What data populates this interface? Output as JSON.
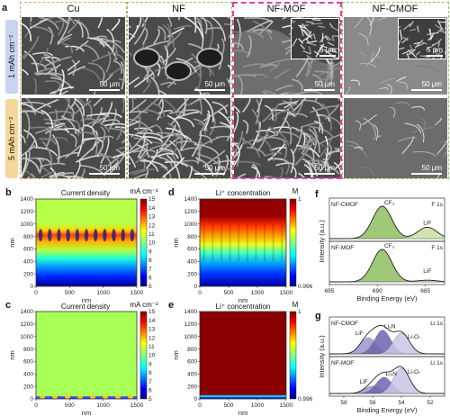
{
  "panel_a": {
    "label": "a",
    "columns": [
      "Cu",
      "NF",
      "NF-MOF",
      "NF-CMOF"
    ],
    "rows": [
      "1 mAh cm⁻²",
      "5 mAh cm⁻²"
    ],
    "scale_bar": "50 μm",
    "inset_scale_bar": "5 μm"
  },
  "panel_b": {
    "label": "b",
    "title": "Current density",
    "unit": "mA cm⁻²",
    "ylabel": "nm",
    "xlabel": "nm"
  },
  "panel_c": {
    "label": "c",
    "title": "Current density",
    "unit": "mA cm⁻²",
    "ylabel": "nm",
    "xlabel": "nm"
  },
  "panel_d": {
    "label": "d",
    "title": "Li⁺ concentration",
    "unit": "M",
    "ylabel": "nm",
    "xlabel": "nm"
  },
  "panel_e": {
    "label": "e",
    "title": "Li⁺ concentration",
    "unit": "M",
    "ylabel": "nm",
    "xlabel": "nm"
  },
  "panel_f": {
    "label": "f",
    "xlabel": "Binding Energy (eV)",
    "ylabel": "Intensity (a.u.)",
    "traces": [
      {
        "sample": "NF-CMOF",
        "element": "F 1s",
        "peak1": "CF₃",
        "peak2": "LiF"
      },
      {
        "sample": "NF-MOF",
        "element": "F 1s",
        "peak1": "CF₃",
        "peak2": "LiF"
      }
    ]
  },
  "panel_g": {
    "label": "g",
    "xlabel": "Binding Energy (eV)",
    "ylabel": "Intensity (a.u.)",
    "traces": [
      {
        "sample": "NF-CMOF",
        "element": "Li 1s",
        "peak1": "Li₃N",
        "peak2": "LiF",
        "peak3": "Li-O-"
      },
      {
        "sample": "NF-MOF",
        "element": "Li 1s",
        "peak1": "Li₃N",
        "peak2": "LiF",
        "peak3": "Li-O-"
      }
    ]
  },
  "chart_data": [
    {
      "type": "heatmap",
      "panel": "b",
      "title": "Current density",
      "xlabel": "nm",
      "ylabel": "nm",
      "xlim": [
        0,
        1500
      ],
      "ylim": [
        0,
        1400
      ],
      "x_ticks": [
        0,
        500,
        1000,
        1500
      ],
      "y_ticks": [
        0,
        200,
        400,
        600,
        800,
        1000,
        1200,
        1400
      ],
      "colorbar": {
        "label": "mA cm⁻²",
        "min": 5,
        "max": 15,
        "ticks": [
          5,
          6,
          7,
          8,
          9,
          10,
          11,
          12,
          13,
          14,
          15
        ]
      }
    },
    {
      "type": "heatmap",
      "panel": "c",
      "title": "Current density",
      "xlabel": "nm",
      "ylabel": "nm",
      "xlim": [
        0,
        1500
      ],
      "ylim": [
        0,
        1400
      ],
      "x_ticks": [
        0,
        500,
        1000,
        1500
      ],
      "y_ticks": [
        0,
        200,
        400,
        600,
        800,
        1000,
        1200,
        1400
      ],
      "colorbar": {
        "label": "mA cm⁻²",
        "min": 5,
        "max": 15,
        "ticks": [
          5,
          6,
          7,
          8,
          9,
          10,
          11,
          12,
          13,
          14,
          15
        ]
      }
    },
    {
      "type": "heatmap",
      "panel": "d",
      "title": "Li⁺ concentration",
      "xlabel": "nm",
      "ylabel": "nm",
      "xlim": [
        0,
        1500
      ],
      "ylim": [
        0,
        1400
      ],
      "x_ticks": [
        0,
        500,
        1000,
        1500
      ],
      "y_ticks": [
        0,
        200,
        400,
        600,
        800,
        1000,
        1200,
        1400
      ],
      "colorbar": {
        "label": "M",
        "min": 0.996,
        "max": 1,
        "ticks": [
          0.996,
          1
        ]
      }
    },
    {
      "type": "heatmap",
      "panel": "e",
      "title": "Li⁺ concentration",
      "xlabel": "nm",
      "ylabel": "nm",
      "xlim": [
        0,
        1500
      ],
      "ylim": [
        0,
        1400
      ],
      "x_ticks": [
        0,
        500,
        1000,
        1500
      ],
      "y_ticks": [
        0,
        200,
        400,
        600,
        800,
        1000,
        1200,
        1400
      ],
      "colorbar": {
        "label": "M",
        "min": 0.996,
        "max": 1,
        "ticks": [
          0.996,
          1
        ]
      }
    },
    {
      "type": "line",
      "panel": "f",
      "xlabel": "Binding Energy (eV)",
      "ylabel": "Intensity (a.u.)",
      "xlim": [
        695,
        683
      ],
      "x_ticks": [
        695,
        690,
        685
      ],
      "series": [
        {
          "name": "NF-CMOF",
          "peaks": [
            {
              "label": "CF₃",
              "center": 689.5,
              "height": 1.0
            },
            {
              "label": "LiF",
              "center": 684.8,
              "height": 0.35
            }
          ]
        },
        {
          "name": "NF-MOF",
          "peaks": [
            {
              "label": "CF₃",
              "center": 689.5,
              "height": 1.0
            },
            {
              "label": "LiF",
              "center": 684.8,
              "height": 0.05
            }
          ]
        }
      ]
    },
    {
      "type": "line",
      "panel": "g",
      "xlabel": "Binding Energy (eV)",
      "ylabel": "Intensity (a.u.)",
      "xlim": [
        59,
        51
      ],
      "x_ticks": [
        58,
        56,
        54,
        52
      ],
      "series": [
        {
          "name": "NF-CMOF",
          "peaks": [
            {
              "label": "LiF",
              "center": 56.3,
              "height": 0.55
            },
            {
              "label": "Li₃N",
              "center": 55.3,
              "height": 0.8
            },
            {
              "label": "Li-O-",
              "center": 54.0,
              "height": 0.7
            }
          ]
        },
        {
          "name": "NF-MOF",
          "peaks": [
            {
              "label": "LiF",
              "center": 56.0,
              "height": 0.25
            },
            {
              "label": "Li₃N",
              "center": 55.2,
              "height": 0.55
            },
            {
              "label": "Li-O-",
              "center": 54.0,
              "height": 0.85
            }
          ]
        }
      ]
    }
  ]
}
